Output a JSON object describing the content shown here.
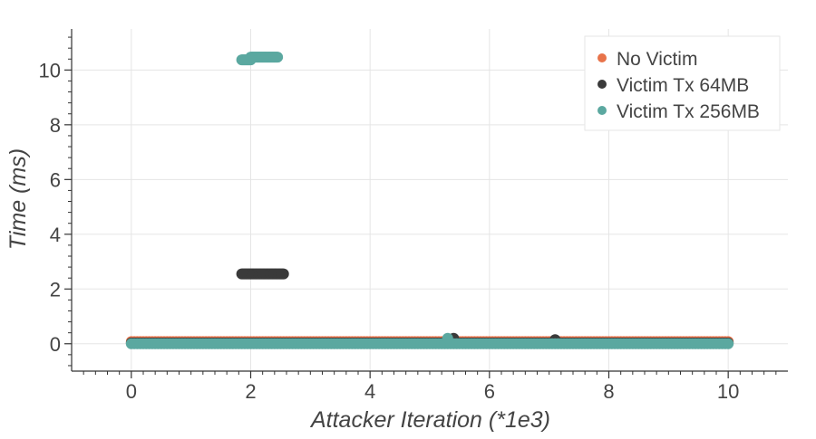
{
  "chart_data": {
    "type": "scatter",
    "title": "",
    "xlabel": "Attacker Iteration (*1e3)",
    "ylabel": "Time (ms)",
    "xlim": [
      -1,
      11
    ],
    "ylim": [
      -1,
      11.5
    ],
    "xticks": [
      0,
      2,
      4,
      6,
      8,
      10
    ],
    "yticks": [
      0,
      2,
      4,
      6,
      8,
      10
    ],
    "grid": true,
    "legend_position": "top-right",
    "series": [
      {
        "name": "No Victim",
        "color": "#e8734a",
        "segments": [
          {
            "x_start": 0,
            "x_end": 10,
            "y": 0.08,
            "step": 0.05
          }
        ],
        "points": []
      },
      {
        "name": "Victim Tx 64MB",
        "color": "#3a3a3a",
        "segments": [
          {
            "x_start": 1.85,
            "x_end": 2.55,
            "y": 2.55,
            "step": 0.02
          },
          {
            "x_start": 0,
            "x_end": 10,
            "y": 0.03,
            "step": 0.05
          }
        ],
        "points": [
          {
            "x": 5.4,
            "y": 0.2
          },
          {
            "x": 7.1,
            "y": 0.15
          }
        ]
      },
      {
        "name": "Victim Tx 256MB",
        "color": "#5ba8a0",
        "segments": [
          {
            "x_start": 1.85,
            "x_end": 2.0,
            "y": 10.37,
            "step": 0.015
          },
          {
            "x_start": 2.0,
            "x_end": 2.45,
            "y": 10.47,
            "step": 0.015
          },
          {
            "x_start": 0,
            "x_end": 10,
            "y": 0.0,
            "step": 0.05
          }
        ],
        "points": [
          {
            "x": 5.3,
            "y": 0.2
          }
        ]
      }
    ]
  }
}
